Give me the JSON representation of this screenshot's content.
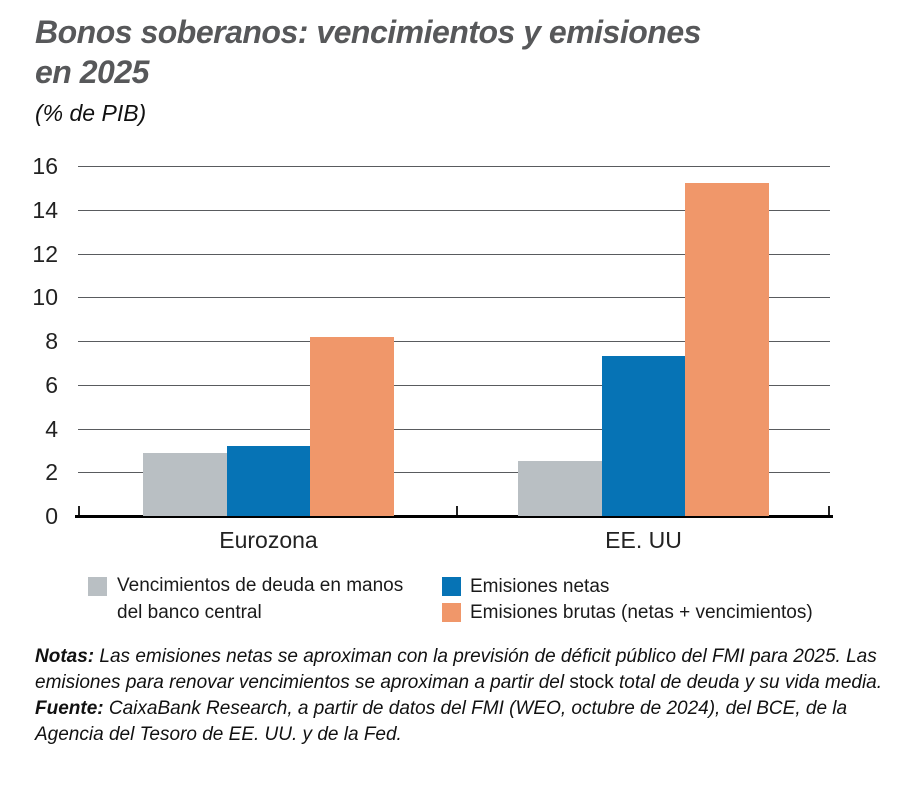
{
  "header": {
    "title_lines": [
      "Bonos soberanos: vencimientos y emisiones",
      "en 2025"
    ],
    "subtitle": "(% de PIB)"
  },
  "chart_data": {
    "type": "bar",
    "title": "Bonos soberanos: vencimientos y emisiones en 2025",
    "unit_label": "(% de PIB)",
    "categories": [
      "Eurozona",
      "EE. UU"
    ],
    "series": [
      {
        "name": "Vencimientos de deuda en manos del banco central",
        "color": "#b9bfc3",
        "values": [
          2.9,
          2.5
        ]
      },
      {
        "name": "Emisiones netas",
        "color": "#0673b5",
        "values": [
          3.2,
          7.3
        ]
      },
      {
        "name": "Emisiones brutas (netas + vencimientos)",
        "color": "#f0976a",
        "values": [
          8.2,
          15.2
        ]
      }
    ],
    "ylim": [
      0,
      16
    ],
    "ytick_step": 2,
    "yticks": [
      0,
      2,
      4,
      6,
      8,
      10,
      12,
      14,
      16
    ],
    "grid": true,
    "legend_position": "bottom"
  },
  "notes": {
    "label": "Notas:",
    "segments": [
      {
        "text": " Las emisiones netas se aproximan con la previsión de déficit público del FMI para 2025. Las emisiones para renovar vencimientos se aproximan a partir del ",
        "italic": true
      },
      {
        "text": "stock",
        "italic": false
      },
      {
        "text": " total de deuda y su vida media.",
        "italic": true
      }
    ]
  },
  "source": {
    "label": "Fuente:",
    "text": " CaixaBank Research, a partir de datos del FMI (WEO, octubre de 2024), del BCE, de la Agencia del Tesoro de EE. UU. y de la Fed."
  },
  "colors": {
    "title": "#57585a",
    "text": "#1a1a1a",
    "grid": "#595b5e",
    "axis": "#000000",
    "background": "#ffffff"
  }
}
